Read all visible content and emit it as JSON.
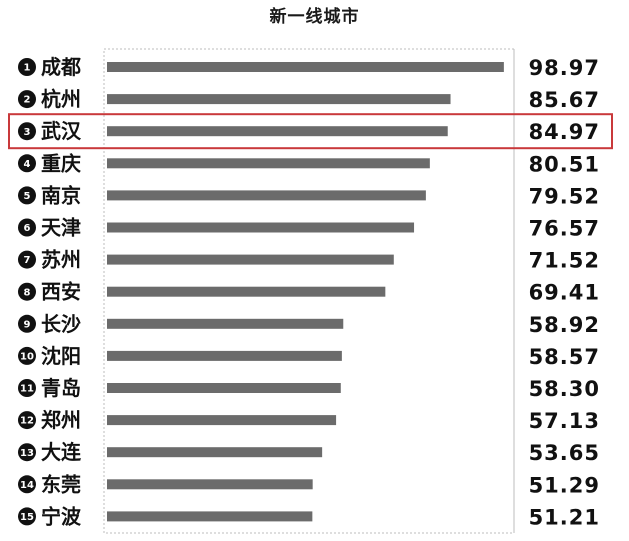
{
  "chart_data": {
    "type": "bar",
    "orientation": "horizontal",
    "title": "新一线城市",
    "categories": [
      "成都",
      "杭州",
      "武汉",
      "重庆",
      "南京",
      "天津",
      "苏州",
      "西安",
      "长沙",
      "沈阳",
      "青岛",
      "郑州",
      "大连",
      "东莞",
      "宁波"
    ],
    "ranks": [
      "1",
      "2",
      "3",
      "4",
      "5",
      "6",
      "7",
      "8",
      "9",
      "10",
      "11",
      "12",
      "13",
      "14",
      "15"
    ],
    "values": [
      98.97,
      85.67,
      84.97,
      80.51,
      79.52,
      76.57,
      71.52,
      69.41,
      58.92,
      58.57,
      58.3,
      57.13,
      53.65,
      51.29,
      51.21
    ],
    "value_labels": [
      "98.97",
      "85.67",
      "84.97",
      "80.51",
      "79.52",
      "76.57",
      "71.52",
      "69.41",
      "58.92",
      "58.57",
      "58.30",
      "57.13",
      "53.65",
      "51.29",
      "51.21"
    ],
    "xlim": [
      0,
      100
    ],
    "grid": false,
    "highlight_index": 2,
    "colors": {
      "bar": "#6b6b6b",
      "highlight_box": "#c9393b",
      "rank_circle": "#111111",
      "frame": "#bdbdbd"
    }
  }
}
